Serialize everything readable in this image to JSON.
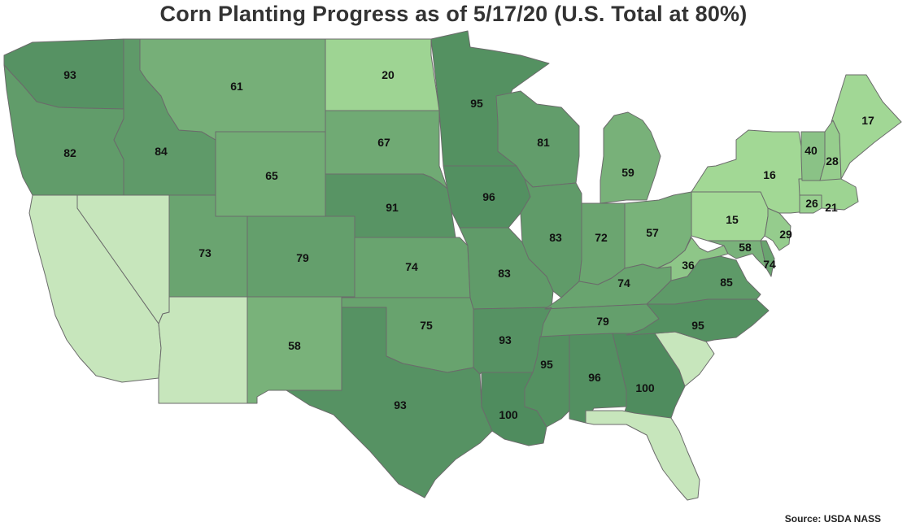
{
  "title": "Corn Planting Progress as of 5/17/20 (U.S. Total at 80%)",
  "source": "Source: USDA NASS",
  "legend_hidden": true,
  "color_scale": {
    "no_data": "#c7e6bc",
    "low": "#a3d996",
    "mid": "#6fae72",
    "high": "#4f8c5e"
  },
  "states": [
    {
      "id": "WA",
      "value": "93"
    },
    {
      "id": "OR",
      "value": "82"
    },
    {
      "id": "CA",
      "value": ""
    },
    {
      "id": "NV",
      "value": ""
    },
    {
      "id": "ID",
      "value": "84"
    },
    {
      "id": "MT",
      "value": "61"
    },
    {
      "id": "WY",
      "value": "65"
    },
    {
      "id": "UT",
      "value": "73"
    },
    {
      "id": "AZ",
      "value": ""
    },
    {
      "id": "CO",
      "value": "79"
    },
    {
      "id": "NM",
      "value": "58"
    },
    {
      "id": "ND",
      "value": "20"
    },
    {
      "id": "SD",
      "value": "67"
    },
    {
      "id": "NE",
      "value": "91"
    },
    {
      "id": "KS",
      "value": "74"
    },
    {
      "id": "OK",
      "value": "75"
    },
    {
      "id": "TX",
      "value": "93"
    },
    {
      "id": "MN",
      "value": "95"
    },
    {
      "id": "IA",
      "value": "96"
    },
    {
      "id": "MO",
      "value": "83"
    },
    {
      "id": "AR",
      "value": "93"
    },
    {
      "id": "LA",
      "value": "100"
    },
    {
      "id": "WI",
      "value": "81"
    },
    {
      "id": "IL",
      "value": "83"
    },
    {
      "id": "MI",
      "value": "59"
    },
    {
      "id": "IN",
      "value": "72"
    },
    {
      "id": "OH",
      "value": "57"
    },
    {
      "id": "KY",
      "value": "74"
    },
    {
      "id": "TN",
      "value": "79"
    },
    {
      "id": "MS",
      "value": "95"
    },
    {
      "id": "AL",
      "value": "96"
    },
    {
      "id": "GA",
      "value": "100"
    },
    {
      "id": "FL",
      "value": ""
    },
    {
      "id": "SC",
      "value": ""
    },
    {
      "id": "NC",
      "value": "95"
    },
    {
      "id": "VA",
      "value": "85"
    },
    {
      "id": "WV",
      "value": "36"
    },
    {
      "id": "MD",
      "value": "58"
    },
    {
      "id": "DE",
      "value": "74"
    },
    {
      "id": "PA",
      "value": "15"
    },
    {
      "id": "NJ",
      "value": "29"
    },
    {
      "id": "NY",
      "value": "16"
    },
    {
      "id": "CT",
      "value": "26"
    },
    {
      "id": "MA",
      "value": "21"
    },
    {
      "id": "VT",
      "value": "40"
    },
    {
      "id": "NH",
      "value": "28"
    },
    {
      "id": "ME",
      "value": "17"
    }
  ]
}
